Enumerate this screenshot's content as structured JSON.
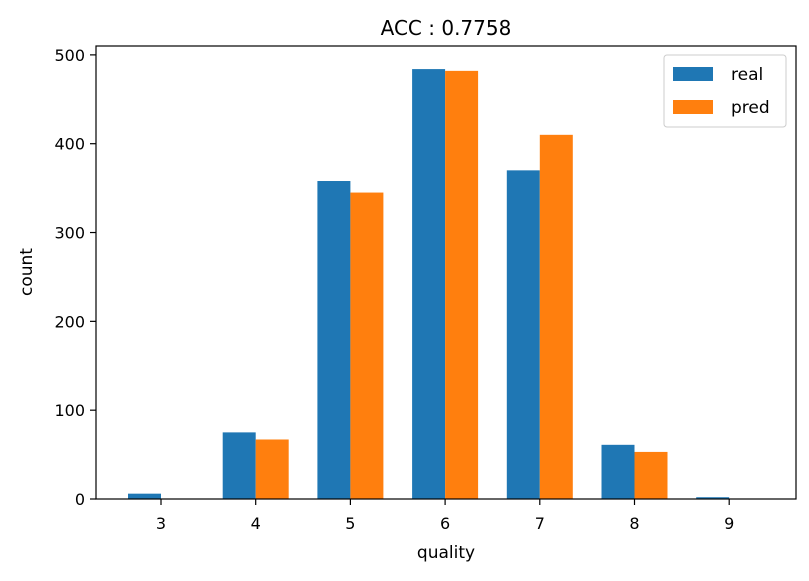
{
  "chart_data": {
    "type": "bar",
    "title": "ACC : 0.7758",
    "xlabel": "quality",
    "ylabel": "count",
    "categories": [
      "3",
      "4",
      "5",
      "6",
      "7",
      "8",
      "9"
    ],
    "series": [
      {
        "name": "real",
        "values": [
          6,
          75,
          358,
          484,
          370,
          61,
          2
        ],
        "color": "#1f77b4"
      },
      {
        "name": "pred",
        "values": [
          0,
          67,
          345,
          482,
          410,
          53,
          0
        ],
        "color": "#ff7f0e"
      }
    ],
    "ylim": [
      0,
      510
    ],
    "yticks": [
      0,
      100,
      200,
      300,
      400,
      500
    ],
    "legend_position": "top-right",
    "grid": false
  }
}
